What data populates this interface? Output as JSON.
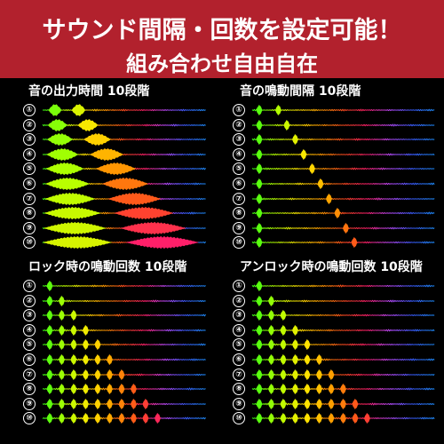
{
  "banner": {
    "title": "サウンド間隔・回数を設定可能！",
    "subtitle": "組み合わせ自由自在"
  },
  "panels": [
    {
      "title": "音の出力時間 10段階",
      "rows": [
        "①",
        "②",
        "③",
        "④",
        "⑤",
        "⑥",
        "⑦",
        "⑧",
        "⑨",
        "⑩"
      ]
    },
    {
      "title": "音の鳴動間隔 10段階",
      "rows": [
        "①",
        "②",
        "③",
        "④",
        "⑤",
        "⑥",
        "⑦",
        "⑧",
        "⑨",
        "⑩"
      ]
    },
    {
      "title": "ロック時の鳴動回数 10段階",
      "rows": [
        "①",
        "②",
        "③",
        "④",
        "⑤",
        "⑥",
        "⑦",
        "⑧",
        "⑨",
        "⑩"
      ]
    },
    {
      "title": "アンロック時の鳴動回数 10段階",
      "rows": [
        "①",
        "②",
        "③",
        "④",
        "⑤",
        "⑥",
        "⑦",
        "⑧",
        "⑨",
        "⑩"
      ]
    }
  ],
  "colors": {
    "banner": "#b2212d",
    "spectrum": [
      "#39ff14",
      "#b6ff00",
      "#ffe600",
      "#ff9a00",
      "#ff4b1f",
      "#ff1f6a",
      "#c04bff",
      "#3a5cff",
      "#1e90ff"
    ]
  }
}
